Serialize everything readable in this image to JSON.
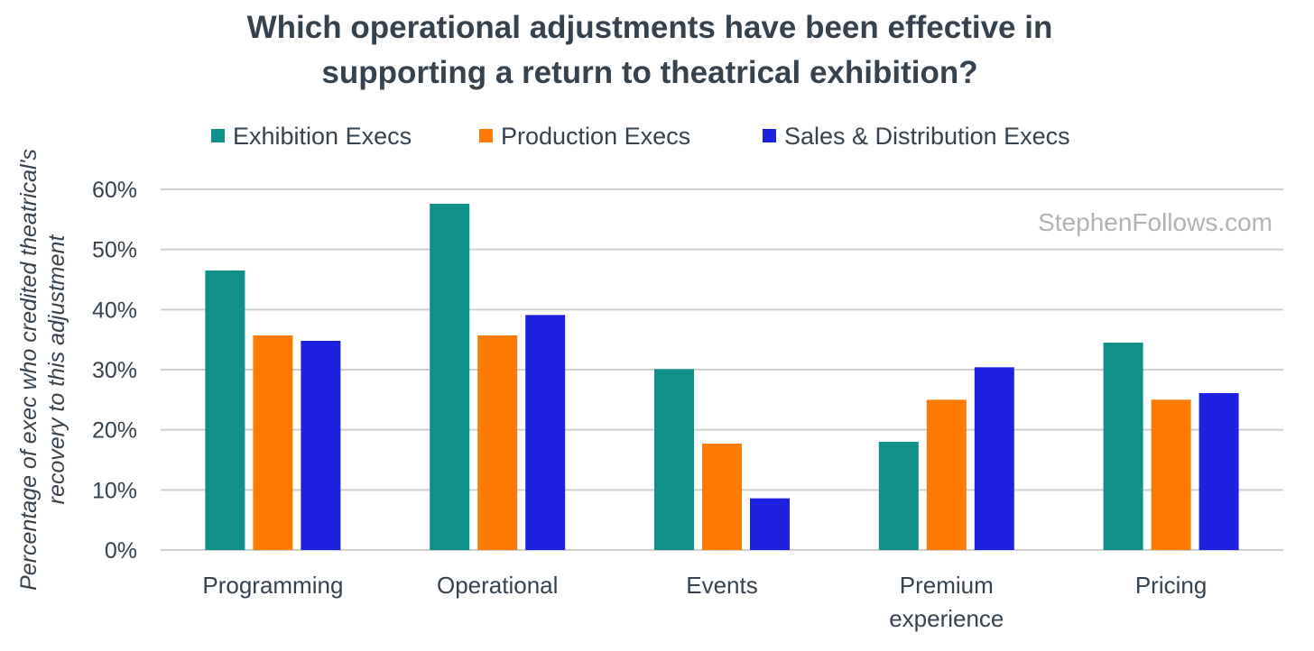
{
  "chart_data": {
    "type": "bar",
    "title": "Which operational adjustments have been effective in supporting a return to theatrical exhibition?",
    "title_lines": [
      "Which operational adjustments have been effective in",
      "supporting a return to theatrical exhibition?"
    ],
    "ylabel_lines": [
      "Percentage of exec who credited theatrical's",
      "recovery to this adjustment"
    ],
    "xlabel": "",
    "watermark": "StephenFollows.com",
    "categories": [
      "Programming",
      "Operational",
      "Events",
      "Premium experience",
      "Pricing"
    ],
    "category_lines": [
      [
        "Programming"
      ],
      [
        "Operational"
      ],
      [
        "Events"
      ],
      [
        "Premium",
        "experience"
      ],
      [
        "Pricing"
      ]
    ],
    "ylim": [
      0,
      60
    ],
    "yticks": [
      "0%",
      "10%",
      "20%",
      "30%",
      "40%",
      "50%",
      "60%"
    ],
    "grid": true,
    "legend_position": "top",
    "series": [
      {
        "name": "Exhibition Execs",
        "color": "#0f918a",
        "values": [
          46.5,
          57.6,
          30.1,
          18.0,
          34.5
        ]
      },
      {
        "name": "Production Execs",
        "color": "#ff7b04",
        "values": [
          35.7,
          35.7,
          17.7,
          25.0,
          25.0
        ]
      },
      {
        "name": "Sales & Distribution Execs",
        "color": "#1e22e0",
        "values": [
          34.8,
          39.1,
          8.6,
          30.4,
          26.1
        ]
      }
    ]
  }
}
